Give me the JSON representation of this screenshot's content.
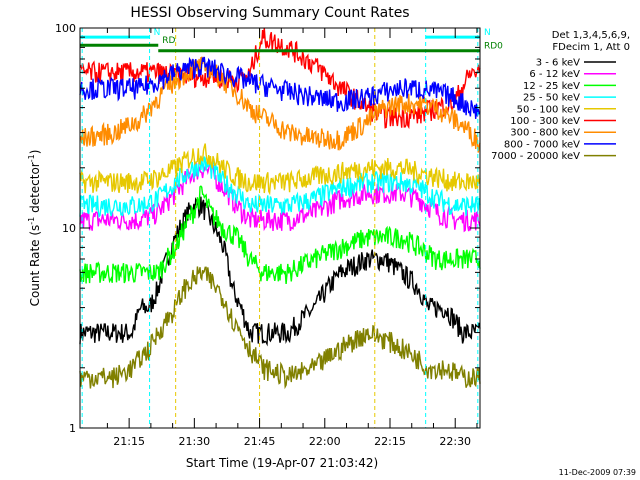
{
  "chart_data": {
    "type": "line",
    "title": "HESSI Observing Summary Count Rates",
    "xlabel": "Start Time (19-Apr-07 21:03:42)",
    "ylabel": "Count Rate (s⁻¹ detector⁻¹)",
    "ylabel_parts": {
      "a": "Count Rate (s",
      "b": "-1",
      "c": " detector",
      "d": "-1",
      "e": ")"
    },
    "y_scale": "log",
    "ylim": [
      1,
      100
    ],
    "xlim_minutes": [
      0,
      92
    ],
    "x_ticks": [
      {
        "label": "21:15",
        "t": 11.3
      },
      {
        "label": "21:30",
        "t": 26.3
      },
      {
        "label": "21:45",
        "t": 41.3
      },
      {
        "label": "22:00",
        "t": 56.3
      },
      {
        "label": "22:15",
        "t": 71.3
      },
      {
        "label": "22:30",
        "t": 86.3
      }
    ],
    "y_ticks": [
      {
        "label": "1",
        "v": 1
      },
      {
        "label": "10",
        "v": 10
      },
      {
        "label": "100",
        "v": 100
      }
    ],
    "legend_header": [
      "Det 1,3,4,5,6,9,",
      "FDecim 1, Att 0"
    ],
    "series": [
      {
        "name": "3 - 6 keV",
        "color": "#000000",
        "t": [
          0,
          8,
          12,
          14,
          16,
          18,
          20,
          22,
          24,
          26,
          28,
          30,
          33,
          35,
          37,
          39,
          42,
          48,
          54,
          60,
          66,
          70,
          74,
          78,
          80,
          84,
          88,
          92
        ],
        "v": [
          3,
          3,
          3,
          4,
          4,
          5,
          7,
          9,
          11,
          13,
          13,
          11,
          8,
          5,
          4,
          3,
          3,
          3,
          4,
          6,
          7,
          7,
          6,
          5,
          4,
          4,
          3,
          3
        ]
      },
      {
        "name": "6 - 12 keV",
        "color": "#ff00ff",
        "t": [
          0,
          8,
          14,
          18,
          22,
          26,
          28,
          30,
          33,
          36,
          39,
          42,
          48,
          54,
          60,
          66,
          70,
          74,
          78,
          82,
          86,
          90,
          92
        ],
        "v": [
          11,
          11,
          11,
          12,
          15,
          19,
          20,
          19,
          16,
          13,
          11,
          11,
          11,
          12,
          14,
          15,
          15,
          15,
          14,
          12,
          11,
          11,
          11
        ]
      },
      {
        "name": "12 - 25 keV",
        "color": "#00ff00",
        "t": [
          0,
          8,
          14,
          18,
          22,
          26,
          28,
          30,
          33,
          36,
          39,
          42,
          48,
          54,
          60,
          66,
          70,
          74,
          78,
          82,
          86,
          90,
          92
        ],
        "v": [
          6,
          6,
          6,
          6,
          8,
          12,
          15,
          12,
          10,
          9,
          7,
          6,
          6,
          7,
          8,
          9,
          9,
          9,
          8,
          7,
          7,
          7,
          7
        ]
      },
      {
        "name": "25 - 50 keV",
        "color": "#00ffff",
        "t": [
          0,
          8,
          14,
          18,
          22,
          26,
          28,
          30,
          33,
          36,
          39,
          42,
          48,
          54,
          60,
          66,
          70,
          74,
          78,
          82,
          86,
          90,
          92
        ],
        "v": [
          13,
          13,
          13,
          14,
          17,
          20,
          21,
          20,
          17,
          15,
          13,
          13,
          13,
          14,
          16,
          17,
          17,
          17,
          16,
          14,
          13,
          13,
          13
        ]
      },
      {
        "name": "50 - 100 keV",
        "color": "#e6c800",
        "t": [
          0,
          8,
          14,
          18,
          22,
          26,
          28,
          30,
          33,
          36,
          39,
          42,
          48,
          54,
          60,
          66,
          70,
          74,
          78,
          82,
          86,
          90,
          92
        ],
        "v": [
          17,
          17,
          17,
          18,
          20,
          23,
          24,
          23,
          20,
          18,
          17,
          17,
          17,
          18,
          19,
          20,
          20,
          20,
          19,
          18,
          17,
          17,
          17
        ]
      },
      {
        "name": "100 - 300 keV",
        "color": "#ff0000",
        "t": [
          0,
          8,
          14,
          18,
          22,
          26,
          28,
          30,
          33,
          36,
          39,
          42,
          48,
          54,
          60,
          66,
          70,
          74,
          78,
          82,
          86,
          90,
          92
        ],
        "v": [
          60,
          60,
          60,
          60,
          58,
          58,
          57,
          58,
          56,
          55,
          58,
          90,
          80,
          65,
          50,
          40,
          36,
          36,
          37,
          40,
          42,
          60,
          60
        ]
      },
      {
        "name": "300 - 800 keV",
        "color": "#ff8c00",
        "t": [
          0,
          8,
          14,
          18,
          22,
          26,
          28,
          30,
          33,
          36,
          39,
          42,
          48,
          54,
          60,
          66,
          70,
          74,
          78,
          82,
          86,
          90,
          92
        ],
        "v": [
          28,
          30,
          35,
          45,
          55,
          63,
          64,
          62,
          55,
          48,
          40,
          36,
          30,
          28,
          28,
          34,
          40,
          42,
          42,
          40,
          35,
          30,
          26
        ]
      },
      {
        "name": "800 - 7000 keV",
        "color": "#0000ff",
        "t": [
          0,
          8,
          14,
          18,
          22,
          26,
          28,
          30,
          33,
          36,
          39,
          42,
          48,
          54,
          60,
          66,
          70,
          74,
          78,
          82,
          86,
          90,
          92
        ],
        "v": [
          50,
          50,
          50,
          55,
          60,
          64,
          65,
          63,
          60,
          57,
          54,
          52,
          48,
          45,
          43,
          45,
          48,
          50,
          50,
          48,
          45,
          40,
          38
        ]
      },
      {
        "name": "7000 - 20000 keV",
        "color": "#808000",
        "t": [
          0,
          8,
          12,
          16,
          18,
          20,
          22,
          24,
          26,
          28,
          30,
          33,
          35,
          37,
          39,
          42,
          48,
          54,
          60,
          66,
          70,
          74,
          78,
          80,
          84,
          88,
          92
        ],
        "v": [
          1.8,
          1.8,
          2,
          2.5,
          3,
          3.5,
          4,
          5,
          5.5,
          6,
          5.5,
          4.5,
          3.5,
          3,
          2.5,
          2,
          1.8,
          2,
          2.5,
          3,
          2.8,
          2.5,
          2.2,
          2,
          2,
          1.8,
          1.8
        ]
      }
    ],
    "flag_bars": [
      {
        "name": "N",
        "label": "N",
        "color": "#00ffff",
        "t0": 0,
        "t1": 16,
        "v": 90
      },
      {
        "name": "N",
        "label": "N",
        "color": "#00ffff",
        "t0": 79.5,
        "t1": 92,
        "v": 90
      },
      {
        "name": "RD",
        "label": "RD",
        "color": "#008000",
        "t0": 0,
        "t1": 18,
        "v": 82
      },
      {
        "name": "RD0",
        "label": "RD0",
        "color": "#008000",
        "t0": 18,
        "t1": 92,
        "v": 77
      }
    ],
    "vertical_markers": [
      {
        "t": 0.5,
        "color": "#00ffff"
      },
      {
        "t": 16,
        "color": "#00ffff"
      },
      {
        "t": 79.5,
        "color": "#00ffff"
      },
      {
        "t": 91.5,
        "color": "#00ffff"
      },
      {
        "t": 22,
        "color": "#e6c800"
      },
      {
        "t": 41.3,
        "color": "#e6c800"
      },
      {
        "t": 67.8,
        "color": "#e6c800"
      }
    ]
  },
  "timestamp": "11-Dec-2009 07:39"
}
